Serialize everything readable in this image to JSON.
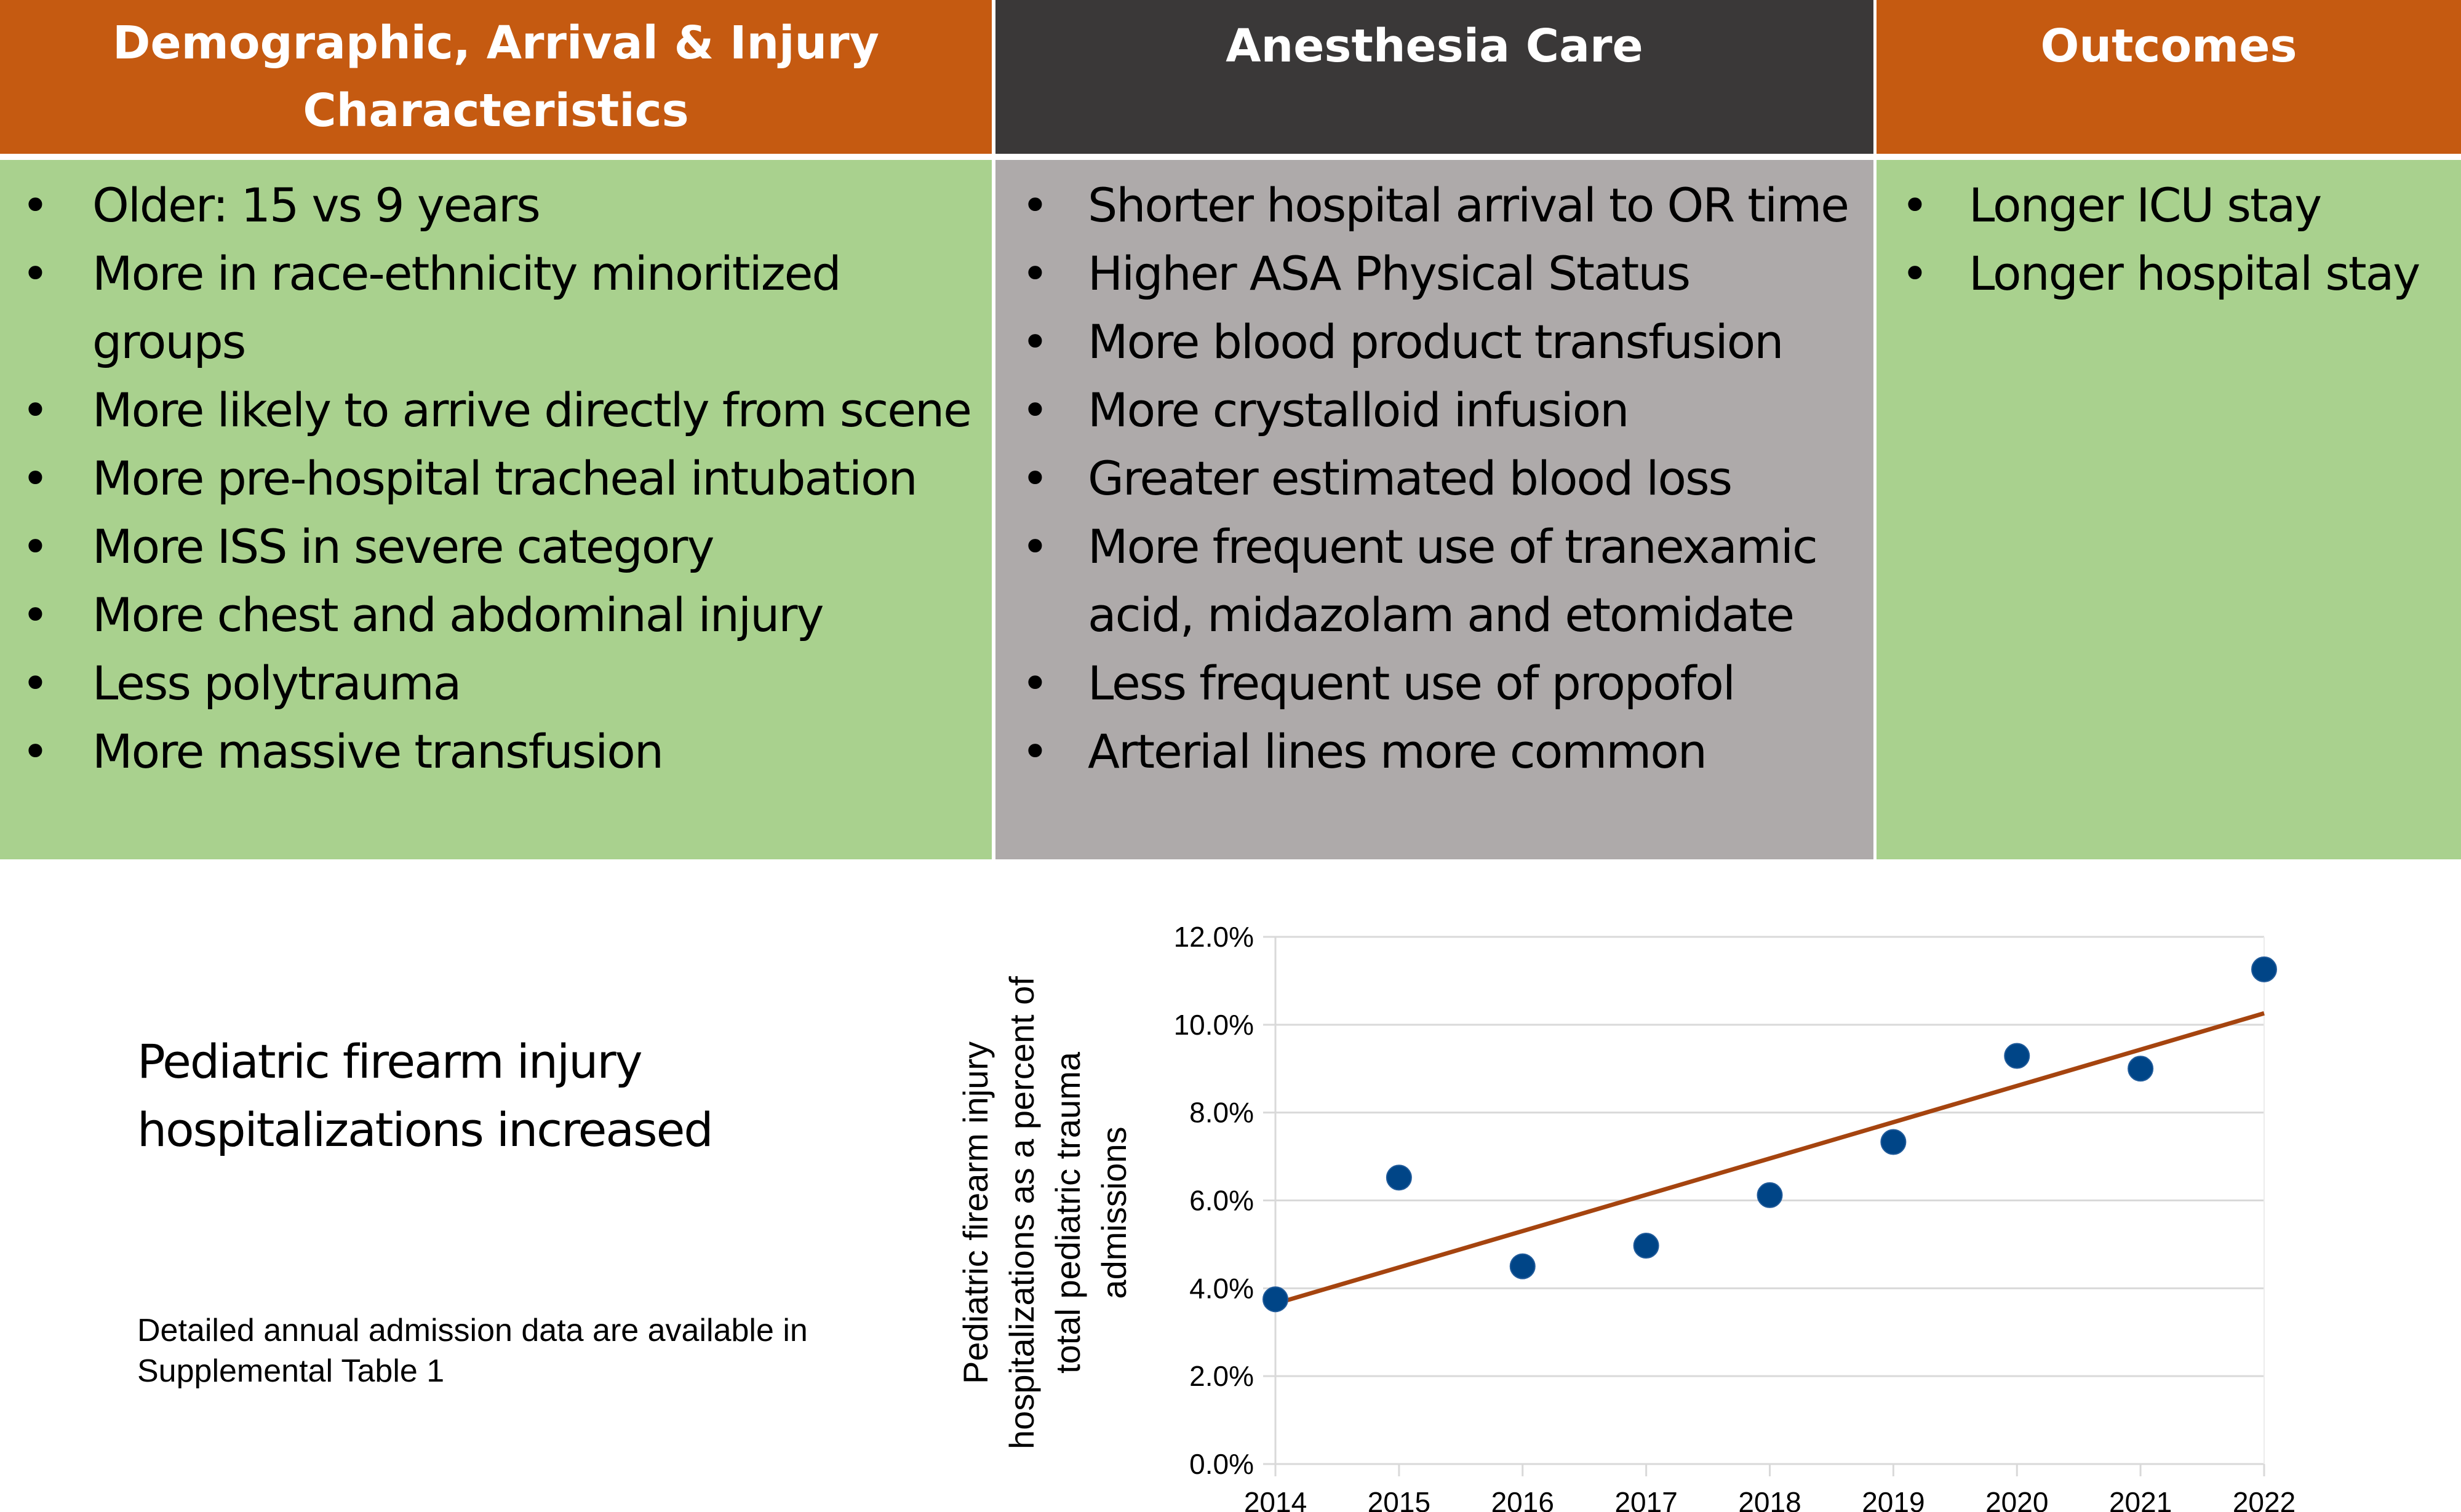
{
  "headers": {
    "col1": "Demographic, Arrival & Injury Characteristics",
    "col2": "Anesthesia Care",
    "col3": "Outcomes"
  },
  "columns": {
    "col1": [
      "Older: 15 vs 9 years",
      "More in race-ethnicity minoritized groups",
      "More likely to arrive directly from scene",
      "More pre-hospital tracheal intubation",
      "More ISS in severe category",
      "More chest and abdominal injury",
      "Less polytrauma",
      "More massive transfusion"
    ],
    "col2": [
      "Shorter hospital arrival to OR time",
      "Higher ASA Physical Status",
      "More blood product transfusion",
      "More crystalloid infusion",
      "Greater estimated blood loss",
      "More frequent use of tranexamic acid, midazolam and etomidate",
      "Less frequent use of propofol",
      "Arterial lines more common"
    ],
    "col3": [
      "Longer ICU stay",
      "Longer hospital stay"
    ]
  },
  "bullet_glyph": "•",
  "bottom": {
    "headline": "Pediatric firearm injury hospitalizations increased",
    "note": "Detailed annual admission data are available in Supplemental Table 1"
  },
  "colors": {
    "orange_header": "#c55a11",
    "dark_header": "#3a3838",
    "green_panel": "#a9d18e",
    "gray_panel": "#aeaaaa",
    "point": "#004587",
    "trendline": "#a5440f"
  },
  "chart_data": {
    "type": "scatter",
    "title": "",
    "xlabel": "",
    "ylabel": "Pediatric firearm injury hospitalizations as a percent of total pediatric trauma admissions",
    "ylabel_lines": [
      "Pediatric firearm injury",
      "hospitalizations as a percent of",
      "total pediatric trauma",
      "admissions"
    ],
    "x": [
      2014,
      2015,
      2016,
      2017,
      2018,
      2019,
      2020,
      2021,
      2022
    ],
    "y": [
      3.75,
      6.52,
      4.5,
      4.97,
      6.12,
      7.33,
      9.29,
      9.0,
      11.26
    ],
    "x_ticks": [
      "2014",
      "2015",
      "2016",
      "2017",
      "2018",
      "2019",
      "2020",
      "2021",
      "2022"
    ],
    "y_ticks": [
      "0.0%",
      "2.0%",
      "4.0%",
      "6.0%",
      "8.0%",
      "10.0%",
      "12.0%"
    ],
    "y_tick_values": [
      0,
      2,
      4,
      6,
      8,
      10,
      12
    ],
    "xlim": [
      2014,
      2022
    ],
    "ylim": [
      0,
      12
    ],
    "grid": true,
    "legend": "none",
    "trendline": {
      "type": "linear",
      "start": [
        2014,
        3.65
      ],
      "end": [
        2022,
        10.26
      ]
    }
  }
}
